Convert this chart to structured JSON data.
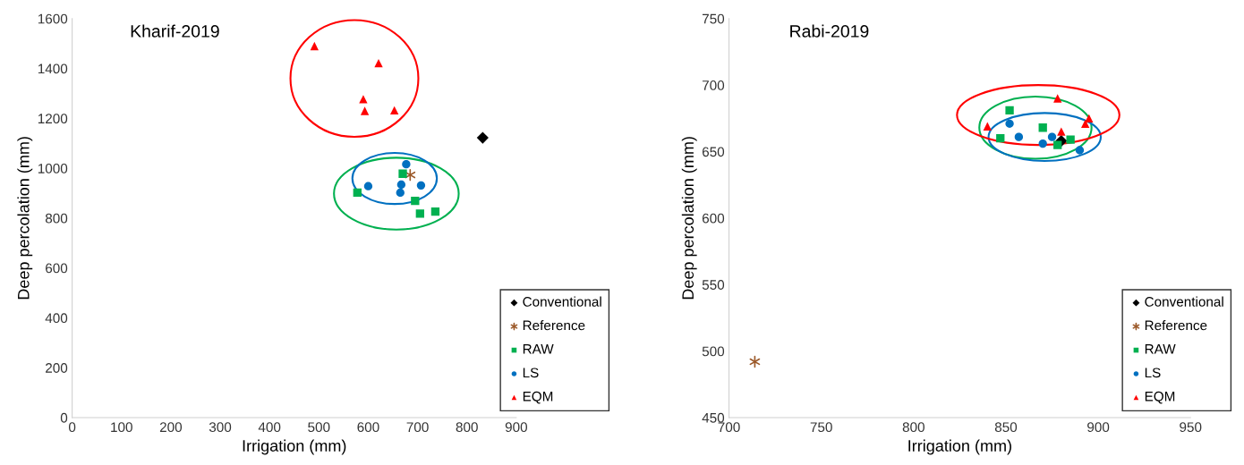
{
  "chart_data": [
    {
      "type": "scatter",
      "title": "Kharif-2019",
      "xlabel": "Irrigation (mm)",
      "ylabel": "Deep percolation (mm)",
      "xlim": [
        0,
        900
      ],
      "xticks": [
        0,
        100,
        200,
        300,
        400,
        500,
        600,
        700,
        800,
        900
      ],
      "ylim": [
        0,
        1600
      ],
      "yticks": [
        0,
        200,
        400,
        600,
        800,
        1000,
        1200,
        1400,
        1600
      ],
      "grid": false,
      "legend": "bottom right",
      "series": [
        {
          "name": "Conventional",
          "color": "#000000",
          "marker": "diamond",
          "x": [
            832
          ],
          "values": [
            1122
          ]
        },
        {
          "name": "Reference",
          "color": "#9c5a2a",
          "marker": "cross",
          "x": [
            685
          ],
          "values": [
            973
          ]
        },
        {
          "name": "RAW",
          "color": "#00b050",
          "marker": "square",
          "x": [
            670,
            578,
            695,
            705,
            736
          ],
          "values": [
            978,
            902,
            869,
            818,
            826
          ]
        },
        {
          "name": "LS",
          "color": "#0070c0",
          "marker": "circle",
          "x": [
            677,
            600,
            667,
            665,
            707
          ],
          "values": [
            1016,
            928,
            934,
            902,
            931
          ]
        },
        {
          "name": "EQM",
          "color": "#ff0000",
          "marker": "triangle",
          "x": [
            491,
            621,
            590,
            593,
            653
          ],
          "values": [
            1490,
            1421,
            1277,
            1230,
            1232
          ]
        }
      ]
    },
    {
      "type": "scatter",
      "title": "Rabi-2019",
      "xlabel": "Irrigation (mm)",
      "ylabel": "Deep percolation (mm)",
      "xlim": [
        700,
        950
      ],
      "xticks": [
        700,
        750,
        800,
        850,
        900,
        950
      ],
      "ylim": [
        450,
        750
      ],
      "yticks": [
        450,
        500,
        550,
        600,
        650,
        700,
        750
      ],
      "grid": false,
      "legend": "bottom right",
      "series": [
        {
          "name": "Conventional",
          "color": "#000000",
          "marker": "diamond",
          "x": [
            880
          ],
          "values": [
            658
          ]
        },
        {
          "name": "Reference",
          "color": "#9c5a2a",
          "marker": "cross",
          "x": [
            714
          ],
          "values": [
            492
          ]
        },
        {
          "name": "RAW",
          "color": "#00b050",
          "marker": "square",
          "x": [
            847,
            852,
            870,
            878,
            885
          ],
          "values": [
            660,
            681,
            668,
            655,
            659
          ]
        },
        {
          "name": "LS",
          "color": "#0070c0",
          "marker": "circle",
          "x": [
            852,
            857,
            870,
            875,
            890
          ],
          "values": [
            671,
            661,
            656,
            661,
            651
          ]
        },
        {
          "name": "EQM",
          "color": "#ff0000",
          "marker": "triangle",
          "x": [
            840,
            878,
            880,
            893,
            895
          ],
          "values": [
            669,
            690,
            665,
            671,
            675
          ]
        }
      ]
    }
  ]
}
